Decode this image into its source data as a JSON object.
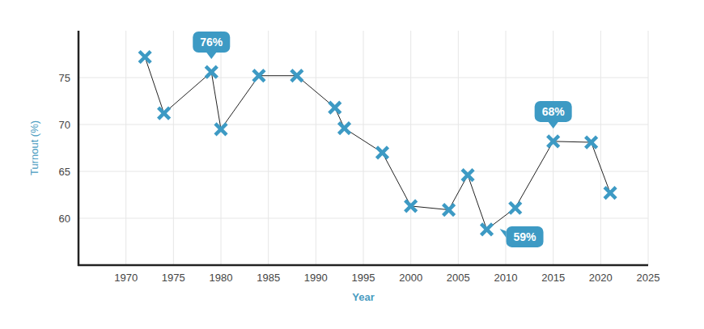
{
  "chart_data": {
    "type": "line",
    "x_label": "Year",
    "y_label": "Turnout (%)",
    "x": [
      1972,
      1974,
      1979,
      1980,
      1984,
      1988,
      1992,
      1993,
      1997,
      2000,
      2004,
      2006,
      2008,
      2011,
      2015,
      2019,
      2021
    ],
    "values": [
      77.2,
      71.2,
      75.6,
      69.5,
      75.2,
      75.2,
      71.8,
      69.6,
      67.0,
      61.3,
      60.9,
      64.6,
      58.8,
      61.1,
      68.2,
      68.1,
      62.7
    ],
    "color": "#3d9ac4",
    "marker": "x",
    "xlim": [
      1965,
      2025
    ],
    "xticks": [
      1970,
      1975,
      1980,
      1985,
      1990,
      1995,
      2000,
      2005,
      2010,
      2015,
      2020,
      2025
    ],
    "ylim": [
      55,
      80
    ],
    "yticks": [
      60,
      65,
      70,
      75
    ],
    "grid": true,
    "annotations": [
      {
        "text": "76%",
        "x": 1979
      },
      {
        "text": "59%",
        "x": 2008
      },
      {
        "text": "68%",
        "x": 2015
      }
    ]
  }
}
